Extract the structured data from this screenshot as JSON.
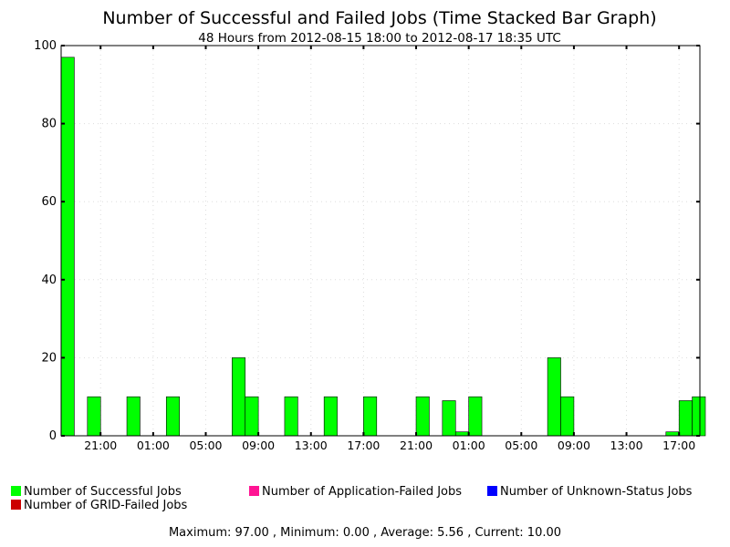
{
  "chart_data": {
    "type": "bar",
    "stacked": true,
    "title": "Number of Successful and Failed Jobs (Time Stacked Bar Graph)",
    "subtitle": "48 Hours from 2012-08-15 18:00 to 2012-08-17 18:35 UTC",
    "xlabel": "",
    "ylabel": "",
    "ylim": [
      0,
      100
    ],
    "yticks": [
      0,
      20,
      40,
      60,
      80,
      100
    ],
    "grid": true,
    "legend_position": "bottom",
    "x_start": "2012-08-15 18:00",
    "x_end": "2012-08-17 18:35",
    "xtick_labels": [
      "21:00",
      "01:00",
      "05:00",
      "09:00",
      "13:00",
      "17:00",
      "21:00",
      "01:00",
      "05:00",
      "09:00",
      "13:00",
      "17:00"
    ],
    "categories": [
      "2012-08-15 18:00",
      "2012-08-15 20:00",
      "2012-08-15 23:00",
      "2012-08-16 02:00",
      "2012-08-16 07:00",
      "2012-08-16 08:00",
      "2012-08-16 11:00",
      "2012-08-16 14:00",
      "2012-08-16 17:00",
      "2012-08-16 21:00",
      "2012-08-16 23:00",
      "2012-08-17 00:00",
      "2012-08-17 01:00",
      "2012-08-17 07:00",
      "2012-08-17 08:00",
      "2012-08-17 16:00",
      "2012-08-17 17:00",
      "2012-08-17 18:00"
    ],
    "series": [
      {
        "name": "Number of Successful Jobs",
        "color": "#00ff00",
        "values": [
          97,
          10,
          10,
          10,
          20,
          10,
          10,
          10,
          10,
          10,
          9,
          1,
          10,
          20,
          10,
          1,
          9,
          10
        ]
      },
      {
        "name": "Number of Application-Failed Jobs",
        "color": "#ff1493",
        "values": [
          0,
          0,
          0,
          0,
          0,
          0,
          0,
          0,
          0,
          0,
          0,
          0,
          0,
          0,
          0,
          0,
          0,
          0
        ]
      },
      {
        "name": "Number of Unknown-Status Jobs",
        "color": "#0000ff",
        "values": [
          0,
          0,
          0,
          0,
          0,
          0,
          0,
          0,
          0,
          0,
          0,
          0,
          0,
          0,
          0,
          0,
          0,
          0
        ]
      },
      {
        "name": "Number of GRID-Failed Jobs",
        "color": "#cc0000",
        "values": [
          0,
          0,
          0,
          0,
          0,
          0,
          0,
          0,
          0,
          0,
          0,
          0,
          0,
          0,
          0,
          0,
          0,
          0
        ]
      }
    ]
  },
  "footer_text": "Maximum: 97.00 , Minimum: 0.00 , Average: 5.56 , Current: 10.00"
}
